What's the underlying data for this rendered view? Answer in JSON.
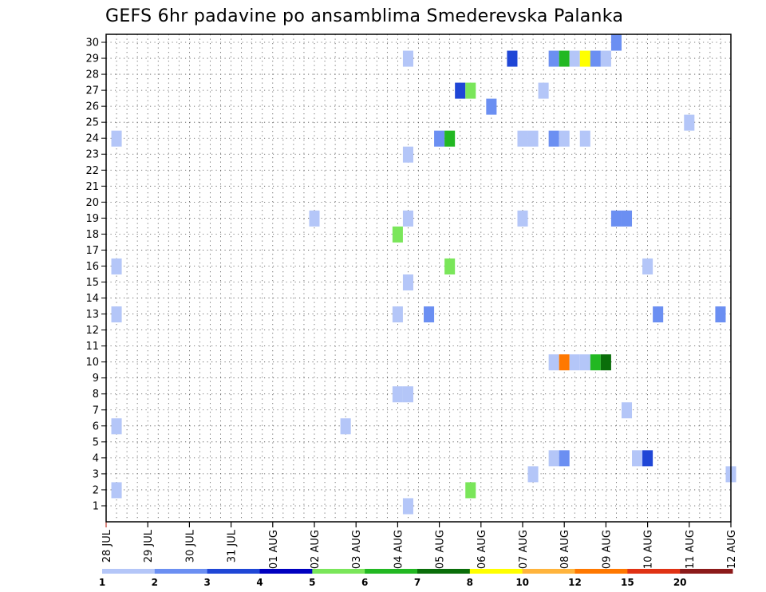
{
  "chart_data": {
    "type": "heatmap",
    "title": "GEFS 6hr padavine po ansamblima Smederevska Palanka",
    "xlabel": "",
    "ylabel": "",
    "x_tick_labels": [
      "28 JUL",
      "29 JUL",
      "30 JUL",
      "31 JUL",
      "01 AUG",
      "02 AUG",
      "03 AUG",
      "04 AUG",
      "05 AUG",
      "06 AUG",
      "07 AUG",
      "08 AUG",
      "09 AUG",
      "10 AUG",
      "11 AUG",
      "12 AUG"
    ],
    "xlim_days": [
      0,
      15
    ],
    "y_tick_labels": [
      "1",
      "2",
      "3",
      "4",
      "5",
      "6",
      "7",
      "8",
      "9",
      "10",
      "11",
      "12",
      "13",
      "14",
      "15",
      "16",
      "17",
      "18",
      "19",
      "20",
      "21",
      "22",
      "23",
      "24",
      "25",
      "26",
      "27",
      "28",
      "29",
      "30"
    ],
    "ylim_members": [
      1,
      30
    ],
    "grid": true,
    "legend": {
      "placement": "bottom",
      "labels": [
        "1",
        "2",
        "3",
        "4",
        "5",
        "6",
        "7",
        "8",
        "10",
        "12",
        "15",
        "20"
      ],
      "colors": [
        "#b4c6f8",
        "#6b8ff2",
        "#1f46d6",
        "#0000c0",
        "#7ae65a",
        "#22b822",
        "#0a6e0a",
        "#ffff00",
        "#ffb43c",
        "#ff7800",
        "#e03214",
        "#8c1a1a"
      ]
    },
    "colors": {
      "lt_blue": "#b4c6f8",
      "med_blue": "#6b8ff2",
      "dk_blue": "#1f46d6",
      "lt_green": "#7ae65a",
      "med_green": "#22b822",
      "dk_green": "#0a6e0a",
      "yellow": "#ffff00",
      "orange": "#ff7800"
    },
    "cells": [
      {
        "member": 1,
        "day": 7.25,
        "color": "lt_blue"
      },
      {
        "member": 2,
        "day": 0.25,
        "color": "lt_blue"
      },
      {
        "member": 2,
        "day": 8.75,
        "color": "lt_green"
      },
      {
        "member": 3,
        "day": 10.25,
        "color": "lt_blue"
      },
      {
        "member": 3,
        "day": 15.0,
        "color": "lt_blue"
      },
      {
        "member": 4,
        "day": 10.75,
        "color": "lt_blue"
      },
      {
        "member": 4,
        "day": 11.0,
        "color": "med_blue"
      },
      {
        "member": 4,
        "day": 12.75,
        "color": "lt_blue"
      },
      {
        "member": 4,
        "day": 13.0,
        "color": "dk_blue"
      },
      {
        "member": 6,
        "day": 0.25,
        "color": "lt_blue"
      },
      {
        "member": 6,
        "day": 5.75,
        "color": "lt_blue"
      },
      {
        "member": 7,
        "day": 12.5,
        "color": "lt_blue"
      },
      {
        "member": 8,
        "day": 7.0,
        "color": "lt_blue"
      },
      {
        "member": 8,
        "day": 7.25,
        "color": "lt_blue"
      },
      {
        "member": 10,
        "day": 10.75,
        "color": "lt_blue"
      },
      {
        "member": 10,
        "day": 11.0,
        "color": "orange"
      },
      {
        "member": 10,
        "day": 11.25,
        "color": "lt_blue"
      },
      {
        "member": 10,
        "day": 11.5,
        "color": "lt_blue"
      },
      {
        "member": 10,
        "day": 11.75,
        "color": "med_green"
      },
      {
        "member": 10,
        "day": 12.0,
        "color": "dk_green"
      },
      {
        "member": 13,
        "day": 0.25,
        "color": "lt_blue"
      },
      {
        "member": 13,
        "day": 7.0,
        "color": "lt_blue"
      },
      {
        "member": 13,
        "day": 7.75,
        "color": "med_blue"
      },
      {
        "member": 13,
        "day": 13.25,
        "color": "med_blue"
      },
      {
        "member": 13,
        "day": 14.75,
        "color": "med_blue"
      },
      {
        "member": 15,
        "day": 7.25,
        "color": "lt_blue"
      },
      {
        "member": 16,
        "day": 0.25,
        "color": "lt_blue"
      },
      {
        "member": 16,
        "day": 8.25,
        "color": "lt_green"
      },
      {
        "member": 16,
        "day": 13.0,
        "color": "lt_blue"
      },
      {
        "member": 18,
        "day": 7.0,
        "color": "lt_green"
      },
      {
        "member": 19,
        "day": 5.0,
        "color": "lt_blue"
      },
      {
        "member": 19,
        "day": 7.25,
        "color": "lt_blue"
      },
      {
        "member": 19,
        "day": 10.0,
        "color": "lt_blue"
      },
      {
        "member": 19,
        "day": 12.25,
        "color": "med_blue"
      },
      {
        "member": 19,
        "day": 12.5,
        "color": "med_blue"
      },
      {
        "member": 23,
        "day": 7.25,
        "color": "lt_blue"
      },
      {
        "member": 24,
        "day": 0.25,
        "color": "lt_blue"
      },
      {
        "member": 24,
        "day": 8.0,
        "color": "med_blue"
      },
      {
        "member": 24,
        "day": 8.25,
        "color": "med_green"
      },
      {
        "member": 24,
        "day": 10.0,
        "color": "lt_blue"
      },
      {
        "member": 24,
        "day": 10.25,
        "color": "lt_blue"
      },
      {
        "member": 24,
        "day": 10.75,
        "color": "med_blue"
      },
      {
        "member": 24,
        "day": 11.0,
        "color": "lt_blue"
      },
      {
        "member": 24,
        "day": 11.5,
        "color": "lt_blue"
      },
      {
        "member": 25,
        "day": 14.0,
        "color": "lt_blue"
      },
      {
        "member": 26,
        "day": 9.25,
        "color": "med_blue"
      },
      {
        "member": 27,
        "day": 8.5,
        "color": "dk_blue"
      },
      {
        "member": 27,
        "day": 8.75,
        "color": "lt_green"
      },
      {
        "member": 27,
        "day": 10.5,
        "color": "lt_blue"
      },
      {
        "member": 29,
        "day": 7.25,
        "color": "lt_blue"
      },
      {
        "member": 29,
        "day": 9.75,
        "color": "dk_blue"
      },
      {
        "member": 29,
        "day": 10.75,
        "color": "med_blue"
      },
      {
        "member": 29,
        "day": 11.0,
        "color": "med_green"
      },
      {
        "member": 29,
        "day": 11.25,
        "color": "lt_blue"
      },
      {
        "member": 29,
        "day": 11.5,
        "color": "yellow"
      },
      {
        "member": 29,
        "day": 11.75,
        "color": "med_blue"
      },
      {
        "member": 29,
        "day": 12.0,
        "color": "lt_blue"
      },
      {
        "member": 30,
        "day": 12.25,
        "color": "med_blue"
      }
    ]
  }
}
